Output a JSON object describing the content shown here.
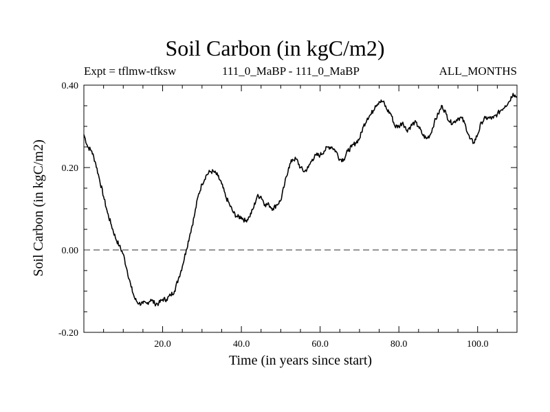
{
  "header": {
    "title": "Soil Carbon (in kgC/m2)",
    "experiment": "Expt = tflmw-tfksw",
    "runs": "111_0_MaBP - 111_0_MaBP",
    "period": "ALL_MONTHS"
  },
  "chart_data": {
    "type": "line",
    "title": "Soil Carbon (in kgC/m2)",
    "xlabel": "Time (in years since start)",
    "ylabel": "Soil Carbon (in kgC/m2)",
    "xlim": [
      0,
      110
    ],
    "ylim": [
      -0.2,
      0.4
    ],
    "x_ticks": [
      20,
      40,
      60,
      80,
      100
    ],
    "x_tick_labels": [
      "20.0",
      "40.0",
      "60.0",
      "80.0",
      "100.0"
    ],
    "y_ticks": [
      -0.2,
      0.0,
      0.2,
      0.4
    ],
    "y_tick_labels": [
      "-0.20",
      "0.00",
      "0.20",
      "0.40"
    ],
    "reference_line": {
      "y": 0.0,
      "style": "dashed"
    },
    "line_color": "#000000",
    "series": [
      {
        "name": "tflmw-tfksw",
        "x": [
          0,
          1,
          2,
          3,
          4,
          5,
          6,
          7,
          8,
          9,
          10,
          11,
          12,
          13,
          14,
          15,
          16,
          17,
          18,
          19,
          20,
          21,
          22,
          23,
          24,
          25,
          26,
          27,
          28,
          29,
          30,
          31,
          32,
          33,
          34,
          35,
          36,
          37,
          38,
          39,
          40,
          41,
          42,
          43,
          44,
          45,
          46,
          47,
          48,
          49,
          50,
          51,
          52,
          53,
          54,
          55,
          56,
          57,
          58,
          59,
          60,
          61,
          62,
          63,
          64,
          65,
          66,
          67,
          68,
          69,
          70,
          71,
          72,
          73,
          74,
          75,
          76,
          77,
          78,
          79,
          80,
          81,
          82,
          83,
          84,
          85,
          86,
          87,
          88,
          89,
          90,
          91,
          92,
          93,
          94,
          95,
          96,
          97,
          98,
          99,
          100,
          101,
          102,
          103,
          104,
          105,
          106,
          107,
          108,
          109,
          110
        ],
        "values": [
          0.28,
          0.25,
          0.24,
          0.21,
          0.17,
          0.13,
          0.09,
          0.06,
          0.03,
          0.01,
          -0.01,
          -0.05,
          -0.09,
          -0.12,
          -0.13,
          -0.13,
          -0.13,
          -0.12,
          -0.13,
          -0.13,
          -0.12,
          -0.12,
          -0.11,
          -0.1,
          -0.07,
          -0.04,
          0.0,
          0.04,
          0.08,
          0.13,
          0.16,
          0.18,
          0.19,
          0.19,
          0.18,
          0.16,
          0.13,
          0.11,
          0.09,
          0.08,
          0.08,
          0.07,
          0.08,
          0.1,
          0.13,
          0.13,
          0.11,
          0.11,
          0.1,
          0.11,
          0.12,
          0.16,
          0.2,
          0.22,
          0.22,
          0.2,
          0.19,
          0.2,
          0.22,
          0.23,
          0.23,
          0.24,
          0.25,
          0.25,
          0.24,
          0.22,
          0.22,
          0.24,
          0.25,
          0.26,
          0.27,
          0.3,
          0.32,
          0.33,
          0.35,
          0.36,
          0.36,
          0.34,
          0.33,
          0.3,
          0.3,
          0.31,
          0.29,
          0.3,
          0.31,
          0.3,
          0.28,
          0.27,
          0.28,
          0.31,
          0.33,
          0.35,
          0.33,
          0.31,
          0.31,
          0.32,
          0.32,
          0.3,
          0.27,
          0.26,
          0.28,
          0.31,
          0.32,
          0.32,
          0.32,
          0.33,
          0.34,
          0.35,
          0.36,
          0.38,
          0.37
        ]
      }
    ]
  }
}
